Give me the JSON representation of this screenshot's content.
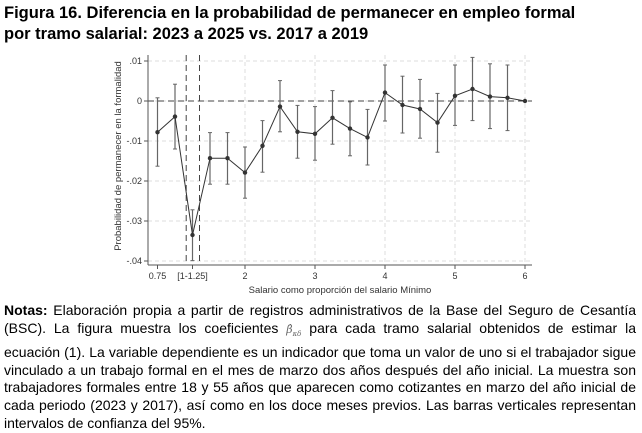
{
  "figure": {
    "title_line1": "Figura 16. Diferencia en la probabilidad de permanecer en empleo formal",
    "title_line2": "por tramo salarial: 2023 a 2025 vs. 2017 a 2019"
  },
  "notes": {
    "label": "Notas:",
    "text_before_symbol": "Elaboración propia a partir de registros administrativos de la Base del Seguro de Cesantía (BSC). La figura muestra los coeficientes",
    "symbol": "β̂",
    "symbol_sub": "κδ",
    "text_after_symbol": "para cada tramo salarial obtenidos de estimar la ecuación (1). La variable dependiente es un indicador que toma un valor de uno si el trabajador sigue vinculado a un trabajo formal en el mes de marzo dos años después del año inicial. La muestra son trabajadores formales entre 18 y 55 años que aparecen como cotizantes en marzo del año inicial de cada periodo (2023 y 2017), así como en los doce meses previos. Las barras verticales representan intervalos de confianza del 95%."
  },
  "chart_data": {
    "type": "line",
    "xlabel": "Salario como proporción del salario Mínimo",
    "ylabel": "Probabilidad de permanecer en la formalidad",
    "xlim": [
      0.7,
      6.05
    ],
    "ylim": [
      -0.041,
      0.011
    ],
    "grid": true,
    "x_ticks": [
      {
        "value": 0.75,
        "label": "0.75"
      },
      {
        "value": 1.25,
        "label": "[1-1.25]"
      },
      {
        "value": 2,
        "label": "2"
      },
      {
        "value": 3,
        "label": "3"
      },
      {
        "value": 4,
        "label": "4"
      },
      {
        "value": 5,
        "label": "5"
      },
      {
        "value": 6,
        "label": "6"
      }
    ],
    "y_ticks": [
      {
        "value": 0.01,
        "label": ".01"
      },
      {
        "value": 0,
        "label": "0"
      },
      {
        "value": -0.01,
        "label": "-.01"
      },
      {
        "value": -0.02,
        "label": "-.02"
      },
      {
        "value": -0.03,
        "label": "-.03"
      },
      {
        "value": -0.04,
        "label": "-.04"
      }
    ],
    "reference_lines": {
      "horizontal": [
        0
      ],
      "vertical": [
        1.16,
        1.35
      ]
    },
    "line_color": "#333333",
    "ci_color": "#666666",
    "points": [
      {
        "x": 0.75,
        "y": -0.0078,
        "lo": -0.0163,
        "hi": 0.0008
      },
      {
        "x": 1.0,
        "y": -0.0039,
        "lo": -0.012,
        "hi": 0.0042
      },
      {
        "x": 1.25,
        "y": -0.0335,
        "lo": -0.0399,
        "hi": -0.0272
      },
      {
        "x": 1.5,
        "y": -0.0143,
        "lo": -0.0208,
        "hi": -0.0079
      },
      {
        "x": 1.75,
        "y": -0.0143,
        "lo": -0.0208,
        "hi": -0.0079
      },
      {
        "x": 2.0,
        "y": -0.0179,
        "lo": -0.0243,
        "hi": -0.0115
      },
      {
        "x": 2.25,
        "y": -0.0112,
        "lo": -0.0178,
        "hi": -0.0049
      },
      {
        "x": 2.5,
        "y": -0.0014,
        "lo": -0.0077,
        "hi": 0.0051
      },
      {
        "x": 2.75,
        "y": -0.0077,
        "lo": -0.0143,
        "hi": -0.0011
      },
      {
        "x": 3.0,
        "y": -0.0082,
        "lo": -0.0148,
        "hi": -0.0014
      },
      {
        "x": 3.25,
        "y": -0.0042,
        "lo": -0.0108,
        "hi": 0.0026
      },
      {
        "x": 3.5,
        "y": -0.0069,
        "lo": -0.0137,
        "hi": -0.0002
      },
      {
        "x": 3.75,
        "y": -0.0091,
        "lo": -0.016,
        "hi": -0.0021
      },
      {
        "x": 4.0,
        "y": 0.0021,
        "lo": -0.005,
        "hi": 0.009
      },
      {
        "x": 4.25,
        "y": -0.001,
        "lo": -0.008,
        "hi": 0.0062
      },
      {
        "x": 4.5,
        "y": -0.002,
        "lo": -0.0093,
        "hi": 0.0054
      },
      {
        "x": 4.75,
        "y": -0.0054,
        "lo": -0.0128,
        "hi": 0.0019
      },
      {
        "x": 5.0,
        "y": 0.0013,
        "lo": -0.0061,
        "hi": 0.009
      },
      {
        "x": 5.25,
        "y": 0.003,
        "lo": -0.0049,
        "hi": 0.0109
      },
      {
        "x": 5.5,
        "y": 0.0011,
        "lo": -0.0069,
        "hi": 0.0093
      },
      {
        "x": 5.75,
        "y": 0.0008,
        "lo": -0.0074,
        "hi": 0.009
      },
      {
        "x": 6.0,
        "y": 0.0,
        "lo": 0.0,
        "hi": 0.0
      }
    ]
  }
}
